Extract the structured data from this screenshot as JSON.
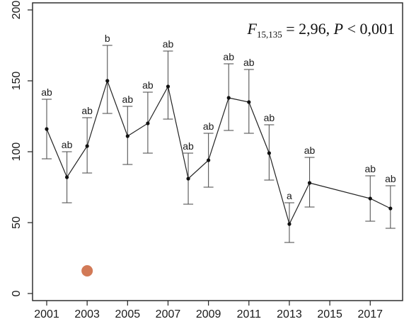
{
  "chart_data": {
    "type": "line",
    "title": "",
    "xlabel": "",
    "ylabel": "",
    "x_ticks": [
      "2001",
      "2003",
      "2005",
      "2007",
      "2009",
      "2011",
      "2013",
      "2015",
      "2017"
    ],
    "y_ticks": [
      "0",
      "50",
      "100",
      "150",
      "200"
    ],
    "xlim": [
      2000.3,
      2018.6
    ],
    "ylim": [
      -5,
      205
    ],
    "grid": false,
    "series": [
      {
        "x": [
          2001,
          2002,
          2003,
          2004,
          2005,
          2006,
          2007,
          2008,
          2009,
          2010,
          2011,
          2012,
          2013,
          2014,
          2017,
          2018
        ],
        "y": [
          116,
          82,
          104,
          150,
          111,
          120,
          146,
          81,
          94,
          138,
          135,
          99,
          49,
          78,
          67,
          60
        ],
        "err_low": [
          95,
          64,
          85,
          127,
          91,
          99,
          123,
          63,
          75,
          115,
          113,
          80,
          36,
          61,
          51,
          46
        ],
        "err_high": [
          137,
          100,
          124,
          175,
          132,
          142,
          171,
          99,
          113,
          162,
          158,
          119,
          64,
          96,
          83,
          76
        ],
        "labels": [
          "ab",
          "ab",
          "ab",
          "b",
          "ab",
          "ab",
          "ab",
          "ab",
          "ab",
          "ab",
          "ab",
          "ab",
          "a",
          "ab",
          "ab",
          "ab"
        ]
      }
    ],
    "stat_annotation": {
      "F": "F",
      "df": "15,135",
      "rest_before_p": " = 2,96, ",
      "P": "P",
      "rest_after_p": " < 0,001"
    },
    "marker": {
      "x": 2003,
      "y": 16,
      "color": "#d27a57"
    }
  }
}
